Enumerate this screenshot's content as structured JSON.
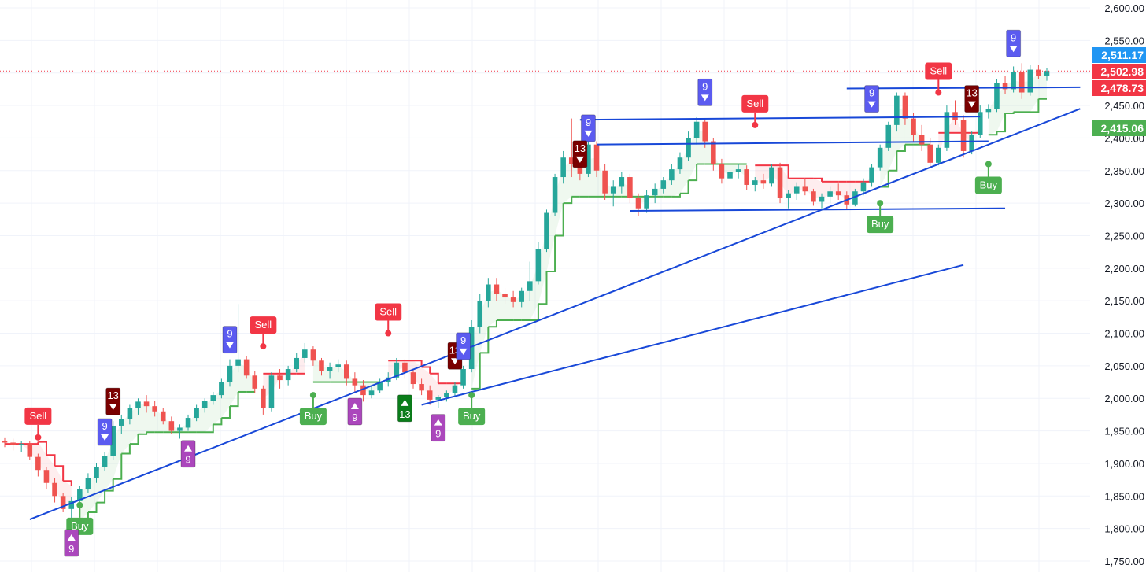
{
  "chart_data": {
    "type": "candlestick",
    "ylim": [
      1750,
      2600
    ],
    "y_ticks": [
      "2,600.00",
      "2,550.00",
      "2,500.00",
      "2,450.00",
      "2,400.00",
      "2,350.00",
      "2,300.00",
      "2,250.00",
      "2,200.00",
      "2,150.00",
      "2,100.00",
      "2,050.00",
      "2,000.00",
      "1,950.00",
      "1,900.00",
      "1,850.00",
      "1,800.00",
      "1,750.00"
    ],
    "price_tags": [
      {
        "label": "2,511.17",
        "value": 2511.17,
        "color": "#2196f3"
      },
      {
        "label": "2,502.98",
        "value": 2502.98,
        "color": "#f23645"
      },
      {
        "label": "2,478.73",
        "value": 2478.73,
        "color": "#f23645"
      },
      {
        "label": "2,415.06",
        "value": 2415.06,
        "color": "#4caf50"
      }
    ],
    "last_price": 2502.98,
    "candles": [
      [
        1935,
        1940,
        1925,
        1932
      ],
      [
        1932,
        1938,
        1920,
        1928
      ],
      [
        1928,
        1935,
        1918,
        1930
      ],
      [
        1930,
        1934,
        1905,
        1910
      ],
      [
        1910,
        1915,
        1880,
        1890
      ],
      [
        1890,
        1895,
        1860,
        1870
      ],
      [
        1870,
        1878,
        1840,
        1850
      ],
      [
        1850,
        1855,
        1825,
        1830
      ],
      [
        1830,
        1848,
        1808,
        1842
      ],
      [
        1842,
        1866,
        1836,
        1860
      ],
      [
        1860,
        1885,
        1855,
        1878
      ],
      [
        1878,
        1900,
        1870,
        1895
      ],
      [
        1895,
        1918,
        1888,
        1912
      ],
      [
        1912,
        1965,
        1906,
        1958
      ],
      [
        1958,
        1975,
        1945,
        1968
      ],
      [
        1968,
        1990,
        1960,
        1985
      ],
      [
        1985,
        2000,
        1975,
        1995
      ],
      [
        1995,
        2005,
        1978,
        1988
      ],
      [
        1988,
        1996,
        1972,
        1980
      ],
      [
        1980,
        1985,
        1960,
        1965
      ],
      [
        1965,
        1972,
        1945,
        1950
      ],
      [
        1950,
        1960,
        1938,
        1955
      ],
      [
        1955,
        1975,
        1950,
        1970
      ],
      [
        1970,
        1990,
        1965,
        1985
      ],
      [
        1985,
        2000,
        1978,
        1996
      ],
      [
        1996,
        2010,
        1990,
        2005
      ],
      [
        2005,
        2030,
        2000,
        2025
      ],
      [
        2025,
        2060,
        2018,
        2050
      ],
      [
        2050,
        2145,
        2040,
        2060
      ],
      [
        2060,
        2065,
        2030,
        2035
      ],
      [
        2035,
        2042,
        2008,
        2015
      ],
      [
        2015,
        2020,
        1975,
        1985
      ],
      [
        1985,
        2040,
        1980,
        2035
      ],
      [
        2035,
        2045,
        2015,
        2028
      ],
      [
        2028,
        2050,
        2020,
        2045
      ],
      [
        2045,
        2070,
        2040,
        2062
      ],
      [
        2062,
        2085,
        2055,
        2075
      ],
      [
        2075,
        2080,
        2050,
        2058
      ],
      [
        2058,
        2062,
        2035,
        2042
      ],
      [
        2042,
        2055,
        2030,
        2048
      ],
      [
        2048,
        2060,
        2040,
        2052
      ],
      [
        2052,
        2058,
        2020,
        2030
      ],
      [
        2030,
        2040,
        2010,
        2020
      ],
      [
        2020,
        2028,
        1995,
        2005
      ],
      [
        2005,
        2020,
        2000,
        2012
      ],
      [
        2012,
        2030,
        2008,
        2025
      ],
      [
        2025,
        2040,
        2018,
        2032
      ],
      [
        2032,
        2062,
        2028,
        2055
      ],
      [
        2055,
        2060,
        2030,
        2040
      ],
      [
        2040,
        2045,
        2015,
        2022
      ],
      [
        2022,
        2030,
        2005,
        2012
      ],
      [
        2012,
        2020,
        1990,
        1998
      ],
      [
        1998,
        2005,
        1985,
        2002
      ],
      [
        2002,
        2012,
        1995,
        2008
      ],
      [
        2008,
        2025,
        2003,
        2020
      ],
      [
        2020,
        2050,
        2015,
        2045
      ],
      [
        2045,
        2120,
        2040,
        2110
      ],
      [
        2110,
        2160,
        2100,
        2150
      ],
      [
        2150,
        2185,
        2140,
        2175
      ],
      [
        2175,
        2185,
        2150,
        2160
      ],
      [
        2160,
        2170,
        2145,
        2155
      ],
      [
        2155,
        2165,
        2140,
        2148
      ],
      [
        2148,
        2170,
        2140,
        2165
      ],
      [
        2165,
        2210,
        2150,
        2180
      ],
      [
        2180,
        2240,
        2175,
        2230
      ],
      [
        2230,
        2290,
        2225,
        2285
      ],
      [
        2285,
        2345,
        2280,
        2340
      ],
      [
        2340,
        2380,
        2330,
        2370
      ],
      [
        2370,
        2430,
        2340,
        2360
      ],
      [
        2360,
        2375,
        2335,
        2345
      ],
      [
        2345,
        2395,
        2340,
        2390
      ],
      [
        2390,
        2395,
        2340,
        2350
      ],
      [
        2350,
        2360,
        2305,
        2315
      ],
      [
        2315,
        2335,
        2295,
        2325
      ],
      [
        2325,
        2348,
        2315,
        2340
      ],
      [
        2340,
        2345,
        2300,
        2308
      ],
      [
        2308,
        2315,
        2280,
        2292
      ],
      [
        2292,
        2320,
        2285,
        2312
      ],
      [
        2312,
        2330,
        2300,
        2322
      ],
      [
        2322,
        2340,
        2315,
        2335
      ],
      [
        2335,
        2360,
        2328,
        2352
      ],
      [
        2352,
        2378,
        2345,
        2370
      ],
      [
        2370,
        2410,
        2365,
        2400
      ],
      [
        2400,
        2432,
        2390,
        2425
      ],
      [
        2425,
        2430,
        2385,
        2395
      ],
      [
        2395,
        2400,
        2350,
        2360
      ],
      [
        2360,
        2368,
        2330,
        2338
      ],
      [
        2338,
        2352,
        2330,
        2348
      ],
      [
        2348,
        2360,
        2338,
        2352
      ],
      [
        2352,
        2358,
        2320,
        2328
      ],
      [
        2328,
        2340,
        2318,
        2335
      ],
      [
        2335,
        2345,
        2322,
        2330
      ],
      [
        2330,
        2360,
        2325,
        2355
      ],
      [
        2355,
        2362,
        2300,
        2308
      ],
      [
        2308,
        2320,
        2292,
        2315
      ],
      [
        2315,
        2332,
        2305,
        2325
      ],
      [
        2325,
        2338,
        2312,
        2318
      ],
      [
        2318,
        2322,
        2296,
        2302
      ],
      [
        2302,
        2315,
        2292,
        2310
      ],
      [
        2310,
        2325,
        2300,
        2318
      ],
      [
        2318,
        2330,
        2305,
        2312
      ],
      [
        2312,
        2318,
        2290,
        2298
      ],
      [
        2298,
        2322,
        2295,
        2318
      ],
      [
        2318,
        2338,
        2312,
        2332
      ],
      [
        2332,
        2360,
        2325,
        2355
      ],
      [
        2355,
        2390,
        2350,
        2385
      ],
      [
        2385,
        2425,
        2380,
        2420
      ],
      [
        2420,
        2470,
        2410,
        2465
      ],
      [
        2465,
        2470,
        2420,
        2430
      ],
      [
        2430,
        2438,
        2395,
        2405
      ],
      [
        2405,
        2420,
        2380,
        2390
      ],
      [
        2390,
        2400,
        2355,
        2362
      ],
      [
        2362,
        2390,
        2358,
        2385
      ],
      [
        2385,
        2450,
        2380,
        2440
      ],
      [
        2440,
        2458,
        2420,
        2428
      ],
      [
        2428,
        2435,
        2370,
        2380
      ],
      [
        2380,
        2410,
        2375,
        2405
      ],
      [
        2405,
        2450,
        2400,
        2440
      ],
      [
        2440,
        2452,
        2430,
        2445
      ],
      [
        2445,
        2490,
        2440,
        2485
      ],
      [
        2485,
        2495,
        2468,
        2475
      ],
      [
        2475,
        2510,
        2470,
        2502
      ],
      [
        2502,
        2515,
        2460,
        2470
      ],
      [
        2470,
        2512,
        2465,
        2505
      ],
      [
        2505,
        2512,
        2490,
        2495
      ],
      [
        2495,
        2508,
        2488,
        2503
      ]
    ],
    "markers": [
      {
        "label": "Sell",
        "kind": "sell",
        "index": 4,
        "price": 1940
      },
      {
        "label": "Buy",
        "kind": "buy",
        "index": 9,
        "price": 1836
      },
      {
        "label": "9",
        "kind": "setup-up",
        "index": 8,
        "price": 1808
      },
      {
        "label": "9",
        "kind": "setup-down",
        "index": 12,
        "price": 1918
      },
      {
        "label": "13",
        "kind": "countdown-down",
        "index": 13,
        "price": 1965
      },
      {
        "label": "9",
        "kind": "setup-up",
        "index": 22,
        "price": 1945
      },
      {
        "label": "9",
        "kind": "setup-down",
        "index": 27,
        "price": 2060
      },
      {
        "label": "Sell",
        "kind": "sell",
        "index": 31,
        "price": 2080
      },
      {
        "label": "Buy",
        "kind": "buy",
        "index": 37,
        "price": 2005
      },
      {
        "label": "9",
        "kind": "setup-up",
        "index": 42,
        "price": 2010
      },
      {
        "label": "Sell",
        "kind": "sell",
        "index": 46,
        "price": 2100
      },
      {
        "label": "13",
        "kind": "countdown-up",
        "index": 48,
        "price": 2015
      },
      {
        "label": "9",
        "kind": "setup-up",
        "index": 52,
        "price": 1985
      },
      {
        "label": "13",
        "kind": "countdown-down",
        "index": 54,
        "price": 2035
      },
      {
        "label": "9",
        "kind": "setup-down",
        "index": 55,
        "price": 2050
      },
      {
        "label": "Buy",
        "kind": "buy",
        "index": 56,
        "price": 2005
      },
      {
        "label": "9",
        "kind": "setup-down",
        "index": 70,
        "price": 2385
      },
      {
        "label": "13",
        "kind": "countdown-down",
        "index": 69,
        "price": 2345
      },
      {
        "label": "9",
        "kind": "setup-down",
        "index": 84,
        "price": 2440
      },
      {
        "label": "Sell",
        "kind": "sell",
        "index": 90,
        "price": 2420
      },
      {
        "label": "9",
        "kind": "setup-down",
        "index": 104,
        "price": 2430
      },
      {
        "label": "Buy",
        "kind": "buy",
        "index": 105,
        "price": 2300
      },
      {
        "label": "Sell",
        "kind": "sell",
        "index": 112,
        "price": 2470
      },
      {
        "label": "13",
        "kind": "countdown-down",
        "index": 116,
        "price": 2430
      },
      {
        "label": "9",
        "kind": "setup-down",
        "index": 121,
        "price": 2515
      },
      {
        "label": "Buy",
        "kind": "buy",
        "index": 118,
        "price": 2360
      }
    ],
    "trend_lines": [
      {
        "x1": 3,
        "y1": 1814,
        "x2": 129,
        "y2": 2445
      },
      {
        "x1": 50,
        "y1": 1990,
        "x2": 115,
        "y2": 2205
      },
      {
        "x1": 69,
        "y1": 2428,
        "x2": 117,
        "y2": 2433
      },
      {
        "x1": 71,
        "y1": 2390,
        "x2": 118,
        "y2": 2395
      },
      {
        "x1": 75,
        "y1": 2288,
        "x2": 120,
        "y2": 2292
      },
      {
        "x1": 101,
        "y1": 2476,
        "x2": 129,
        "y2": 2478
      }
    ],
    "grid": true
  }
}
